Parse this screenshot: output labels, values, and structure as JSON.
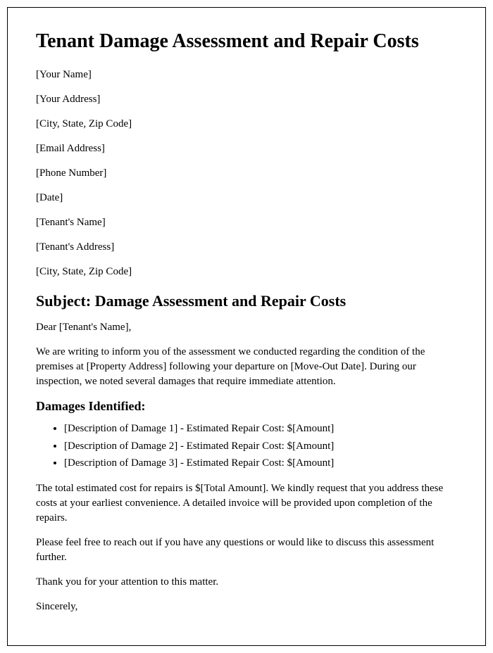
{
  "title": "Tenant Damage Assessment and Repair Costs",
  "sender": {
    "name": "[Your Name]",
    "address": "[Your Address]",
    "city_state_zip": "[City, State, Zip Code]",
    "email": "[Email Address]",
    "phone": "[Phone Number]"
  },
  "date": "[Date]",
  "recipient": {
    "name": "[Tenant's Name]",
    "address": "[Tenant's Address]",
    "city_state_zip": "[City, State, Zip Code]"
  },
  "subject_heading": "Subject: Damage Assessment and Repair Costs",
  "salutation": "Dear [Tenant's Name],",
  "intro_paragraph": "We are writing to inform you of the assessment we conducted regarding the condition of the premises at [Property Address] following your departure on [Move-Out Date]. During our inspection, we noted several damages that require immediate attention.",
  "damages_heading": "Damages Identified:",
  "damages": [
    "[Description of Damage 1] - Estimated Repair Cost: $[Amount]",
    "[Description of Damage 2] - Estimated Repair Cost: $[Amount]",
    "[Description of Damage 3] - Estimated Repair Cost: $[Amount]"
  ],
  "total_paragraph": "The total estimated cost for repairs is $[Total Amount]. We kindly request that you address these costs at your earliest convenience. A detailed invoice will be provided upon completion of the repairs.",
  "contact_paragraph": "Please feel free to reach out if you have any questions or would like to discuss this assessment further.",
  "thank_you": "Thank you for your attention to this matter.",
  "closing": "Sincerely,",
  "styling": {
    "font_family": "Times New Roman",
    "title_fontsize": 28,
    "h2_fontsize": 22,
    "h3_fontsize": 18,
    "body_fontsize": 15,
    "text_color": "#000000",
    "background_color": "#ffffff",
    "border_color": "#000000"
  }
}
